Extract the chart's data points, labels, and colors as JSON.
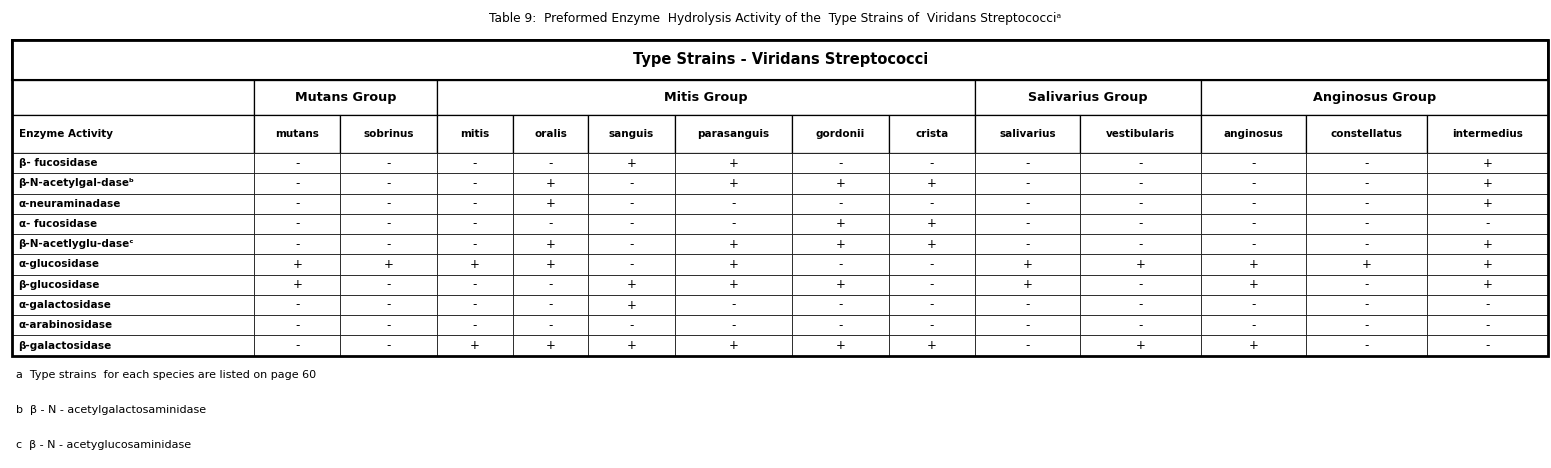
{
  "title": "Table 9:  Preformed Enzyme  Hydrolysis Activity of the  Type Strains of  Viridans Streptococciᵃ",
  "main_header": "Type Strains - Viridans Streptococci",
  "groups": [
    {
      "label": "Mutans Group",
      "cols": [
        1,
        2
      ]
    },
    {
      "label": "Mitis Group",
      "cols": [
        3,
        4,
        5,
        6,
        7,
        8
      ]
    },
    {
      "label": "Salivarius Group",
      "cols": [
        9,
        10
      ]
    },
    {
      "label": "Anginosus Group",
      "cols": [
        11,
        12,
        13
      ]
    }
  ],
  "col_headers": [
    "Enzyme Activity",
    "mutans",
    "sobrinus",
    "mitis",
    "oralis",
    "sanguis",
    "parasanguis",
    "gordonii",
    "crista",
    "salivarius",
    "vestibularis",
    "anginosus",
    "constellatus",
    "intermedius"
  ],
  "rows": [
    [
      "β- fucosidase",
      "-",
      "-",
      "-",
      "-",
      "+",
      "+",
      "-",
      "-",
      "-",
      "-",
      "-",
      "-",
      "+"
    ],
    [
      "β-N-acetylgal-daseᵇ",
      "-",
      "-",
      "-",
      "+",
      "-",
      "+",
      "+",
      "+",
      "-",
      "-",
      "-",
      "-",
      "+"
    ],
    [
      "α-neuraminadase",
      "-",
      "-",
      "-",
      "+",
      "-",
      "-",
      "-",
      "-",
      "-",
      "-",
      "-",
      "-",
      "+"
    ],
    [
      "α- fucosidase",
      "-",
      "-",
      "-",
      "-",
      "-",
      "-",
      "+",
      "+",
      "-",
      "-",
      "-",
      "-",
      "-"
    ],
    [
      "β-N-acetlyglu-daseᶜ",
      "-",
      "-",
      "-",
      "+",
      "-",
      "+",
      "+",
      "+",
      "-",
      "-",
      "-",
      "-",
      "+"
    ],
    [
      "α-glucosidase",
      "+",
      "+",
      "+",
      "+",
      "-",
      "+",
      "-",
      "-",
      "+",
      "+",
      "+",
      "+",
      "+"
    ],
    [
      "β-glucosidase",
      "+",
      "-",
      "-",
      "-",
      "+",
      "+",
      "+",
      "-",
      "+",
      "-",
      "+",
      "-",
      "+"
    ],
    [
      "α-galactosidase",
      "-",
      "-",
      "-",
      "-",
      "+",
      "-",
      "-",
      "-",
      "-",
      "-",
      "-",
      "-",
      "-"
    ],
    [
      "α-arabinosidase",
      "-",
      "-",
      "-",
      "-",
      "-",
      "-",
      "-",
      "-",
      "-",
      "-",
      "-",
      "-",
      "-"
    ],
    [
      "β-galactosidase",
      "-",
      "-",
      "+",
      "+",
      "+",
      "+",
      "+",
      "+",
      "-",
      "+",
      "+",
      "-",
      "-"
    ]
  ],
  "footnotes": [
    "a  Type strains  for each species are listed on page 60",
    "b  β - N - acetylgalactosaminidase",
    "c  β - N - acetyglucosaminidase"
  ],
  "col_widths_rel": [
    2.3,
    0.82,
    0.92,
    0.72,
    0.72,
    0.82,
    1.12,
    0.92,
    0.82,
    1.0,
    1.15,
    1.0,
    1.15,
    1.15
  ]
}
